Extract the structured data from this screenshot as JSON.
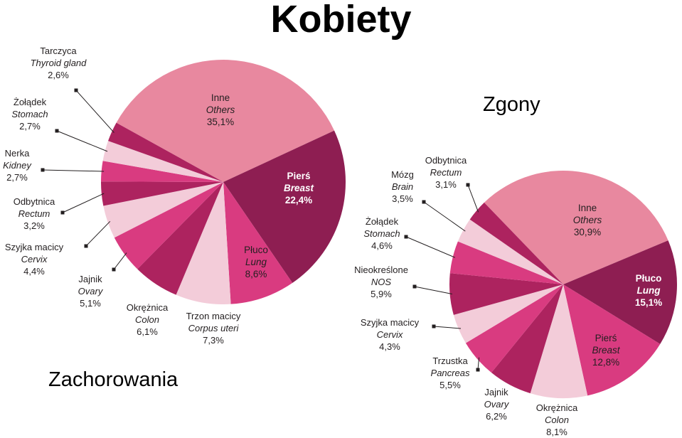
{
  "title": "Kobiety",
  "colors": {
    "light_pink": "#e8889f",
    "burgundy": "#8e1e52",
    "wine": "#ad235f",
    "magenta": "#d93b80",
    "pale_pink": "#f3ccd9",
    "text": "#231f20"
  },
  "chart_data": [
    {
      "type": "pie",
      "title": "Zachorowania",
      "slices": [
        {
          "name": "Inne",
          "name_en": "Others",
          "value": 35.1,
          "label": "35,1%",
          "color": "#e8889f"
        },
        {
          "name": "Pierś",
          "name_en": "Breast",
          "value": 22.4,
          "label": "22,4%",
          "color": "#8e1e52"
        },
        {
          "name": "Płuco",
          "name_en": "Lung",
          "value": 8.6,
          "label": "8,6%",
          "color": "#d93b80"
        },
        {
          "name": "Trzon macicy",
          "name_en": "Corpus uteri",
          "value": 7.3,
          "label": "7,3%",
          "color": "#f3ccd9"
        },
        {
          "name": "Okrężnica",
          "name_en": "Colon",
          "value": 6.1,
          "label": "6,1%",
          "color": "#ad235f"
        },
        {
          "name": "Jajnik",
          "name_en": "Ovary",
          "value": 5.1,
          "label": "5,1%",
          "color": "#d93b80"
        },
        {
          "name": "Szyjka macicy",
          "name_en": "Cervix",
          "value": 4.4,
          "label": "4,4%",
          "color": "#f3ccd9"
        },
        {
          "name": "Odbytnica",
          "name_en": "Rectum",
          "value": 3.2,
          "label": "3,2%",
          "color": "#ad235f"
        },
        {
          "name": "Nerka",
          "name_en": "Kidney",
          "value": 2.7,
          "label": "2,7%",
          "color": "#d93b80"
        },
        {
          "name": "Żołądek",
          "name_en": "Stomach",
          "value": 2.7,
          "label": "2,7%",
          "color": "#f3ccd9"
        },
        {
          "name": "Tarczyca",
          "name_en": "Thyroid gland",
          "value": 2.6,
          "label": "2,6%",
          "color": "#ad235f"
        }
      ]
    },
    {
      "type": "pie",
      "title": "Zgony",
      "slices": [
        {
          "name": "Inne",
          "name_en": "Others",
          "value": 30.9,
          "label": "30,9%",
          "color": "#e8889f"
        },
        {
          "name": "Płuco",
          "name_en": "Lung",
          "value": 15.1,
          "label": "15,1%",
          "color": "#8e1e52"
        },
        {
          "name": "Pierś",
          "name_en": "Breast",
          "value": 12.8,
          "label": "12,8%",
          "color": "#d93b80"
        },
        {
          "name": "Okrężnica",
          "name_en": "Colon",
          "value": 8.1,
          "label": "8,1%",
          "color": "#f3ccd9"
        },
        {
          "name": "Jajnik",
          "name_en": "Ovary",
          "value": 6.2,
          "label": "6,2%",
          "color": "#ad235f"
        },
        {
          "name": "Trzustka",
          "name_en": "Pancreas",
          "value": 5.5,
          "label": "5,5%",
          "color": "#d93b80"
        },
        {
          "name": "Szyjka macicy",
          "name_en": "Cervix",
          "value": 4.3,
          "label": "4,3%",
          "color": "#f3ccd9"
        },
        {
          "name": "Nieokreślone",
          "name_en": "NOS",
          "value": 5.9,
          "label": "5,9%",
          "color": "#ad235f"
        },
        {
          "name": "Żołądek",
          "name_en": "Stomach",
          "value": 4.6,
          "label": "4,6%",
          "color": "#d93b80"
        },
        {
          "name": "Mózg",
          "name_en": "Brain",
          "value": 3.5,
          "label": "3,5%",
          "color": "#f3ccd9"
        },
        {
          "name": "Odbytnica",
          "name_en": "Rectum",
          "value": 3.1,
          "label": "3,1%",
          "color": "#ad235f"
        }
      ]
    }
  ]
}
